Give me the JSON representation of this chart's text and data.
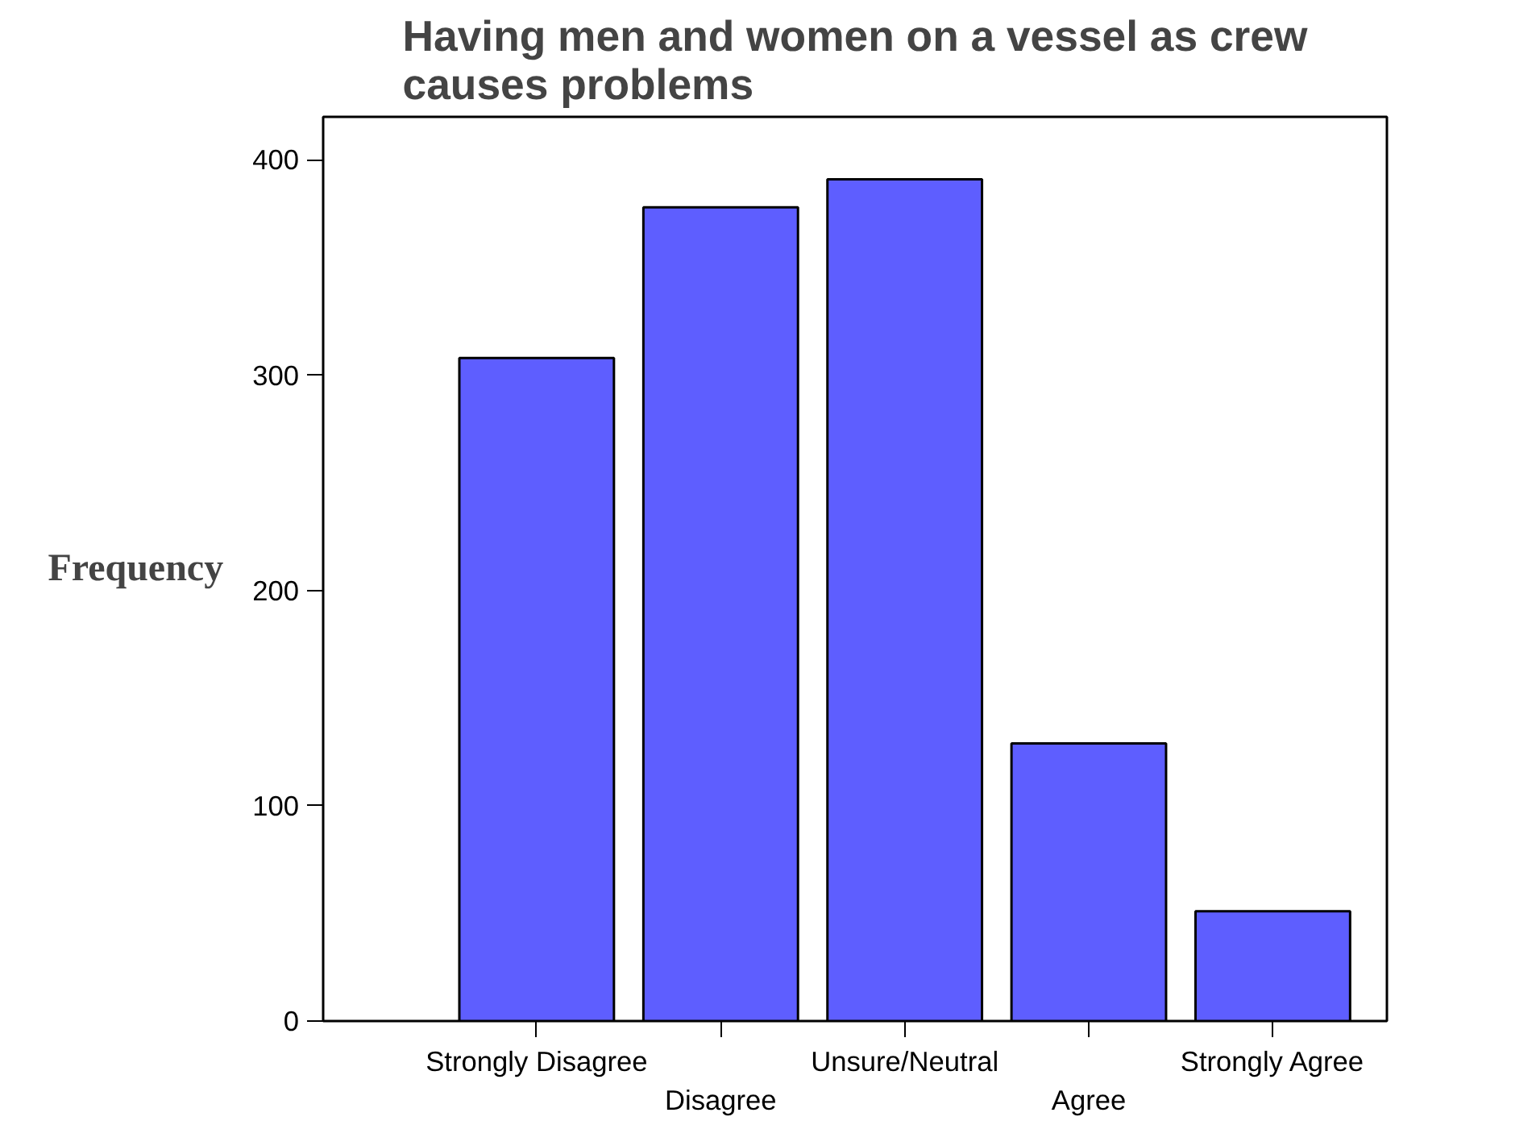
{
  "chart_data": {
    "type": "bar",
    "title": "Having men and women on a vessel as crew\ncauses problems",
    "ylabel": "Frequency",
    "categories": [
      "Strongly Disagree",
      "Disagree",
      "Unsure/Neutral",
      "Agree",
      "Strongly Agree"
    ],
    "values": [
      308,
      378,
      391,
      129,
      51
    ],
    "color": "#5e5eff",
    "ylim": [
      0,
      420
    ],
    "yticks": [
      0,
      100,
      200,
      300,
      400
    ],
    "grid": false
  }
}
